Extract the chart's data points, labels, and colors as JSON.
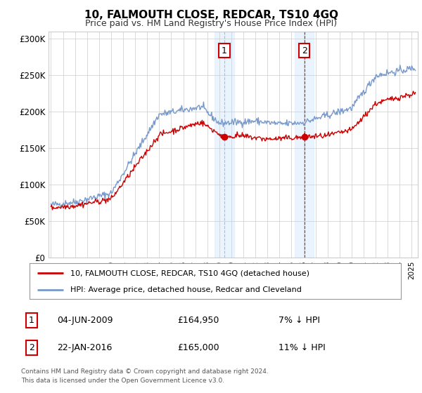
{
  "title": "10, FALMOUTH CLOSE, REDCAR, TS10 4GQ",
  "subtitle": "Price paid vs. HM Land Registry's House Price Index (HPI)",
  "ylim": [
    0,
    310000
  ],
  "yticks": [
    0,
    50000,
    100000,
    150000,
    200000,
    250000,
    300000
  ],
  "ytick_labels": [
    "£0",
    "£50K",
    "£100K",
    "£150K",
    "£200K",
    "£250K",
    "£300K"
  ],
  "sale1_date_num": 2009.42,
  "sale1_price": 164950,
  "sale1_label": "1",
  "sale1_date_str": "04-JUN-2009",
  "sale1_pct": "7% ↓ HPI",
  "sale2_date_num": 2016.06,
  "sale2_price": 165000,
  "sale2_label": "2",
  "sale2_date_str": "22-JAN-2016",
  "sale2_pct": "11% ↓ HPI",
  "legend_label1": "10, FALMOUTH CLOSE, REDCAR, TS10 4GQ (detached house)",
  "legend_label2": "HPI: Average price, detached house, Redcar and Cleveland",
  "property_color": "#cc0000",
  "hpi_color": "#7799cc",
  "footnote1": "Contains HM Land Registry data © Crown copyright and database right 2024.",
  "footnote2": "This data is licensed under the Open Government Licence v3.0.",
  "background_color": "#ffffff",
  "grid_color": "#cccccc",
  "shading_color": "#ddeeff",
  "xmin": 1994.8,
  "xmax": 2025.5
}
